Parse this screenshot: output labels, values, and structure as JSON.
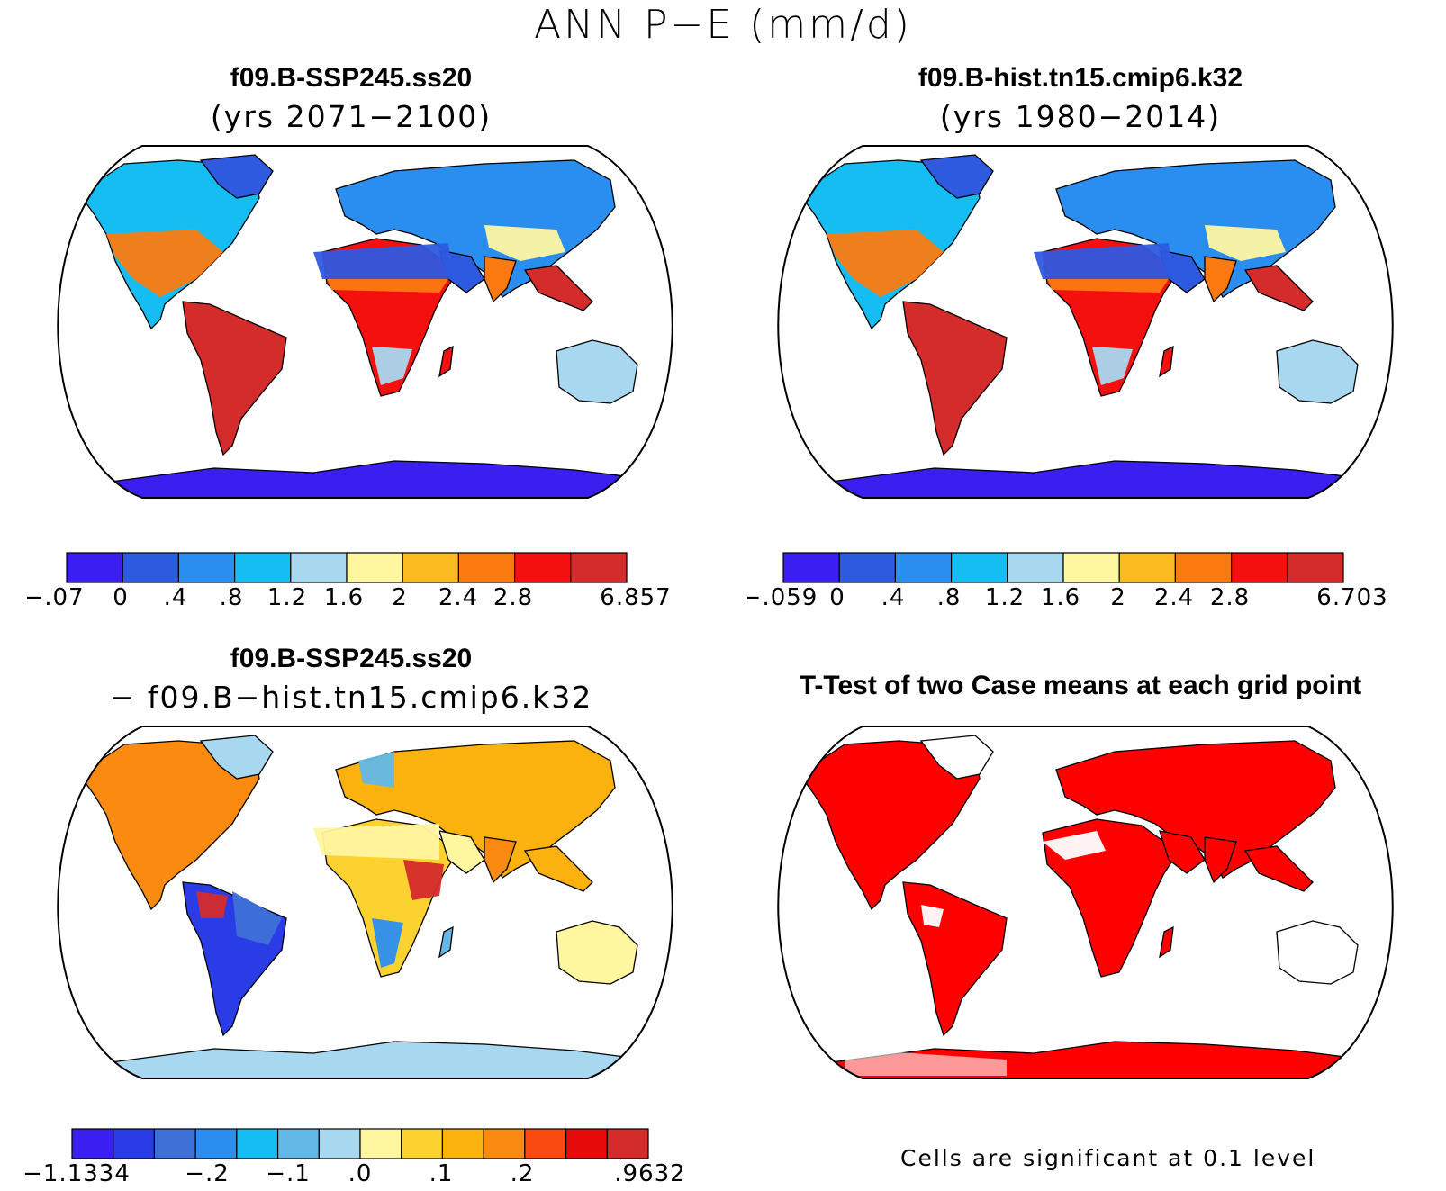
{
  "figure": {
    "title": "ANN P−E (mm/d)"
  },
  "panels": {
    "p1": {
      "title": "f09.B-SSP245.ss20",
      "subtitle": "(yrs 2071−2100)"
    },
    "p2": {
      "title": "f09.B-hist.tn15.cmip6.k32",
      "subtitle": "(yrs 1980−2014)"
    },
    "p3": {
      "title": "f09.B-SSP245.ss20",
      "subtitle": "− f09.B−hist.tn15.cmip6.k32"
    },
    "p4": {
      "title": "T-Test of two Case means at each grid point",
      "note": "Cells are significant at 0.1 level"
    }
  },
  "colorbars": {
    "cb1": {
      "labels": [
        "−.07",
        "0",
        ".4",
        ".8",
        "1.2",
        "1.6",
        "2",
        "2.4",
        "2.8",
        "6.857"
      ],
      "colors": [
        "#3b1ef0",
        "#2e5ae0",
        "#2a8ef0",
        "#16bdf2",
        "#a8d8f0",
        "#fff6a0",
        "#fbbb20",
        "#fb7a10",
        "#f51010",
        "#d42b2b"
      ]
    },
    "cb2": {
      "labels": [
        "−.059",
        "0",
        ".4",
        ".8",
        "1.2",
        "1.6",
        "2",
        "2.4",
        "2.8",
        "6.703"
      ],
      "colors": [
        "#3b1ef0",
        "#2e5ae0",
        "#2a8ef0",
        "#16bdf2",
        "#a8d8f0",
        "#fff6a0",
        "#fbbb20",
        "#fb7a10",
        "#f51010",
        "#d42b2b"
      ]
    },
    "cb3": {
      "labels": [
        "−1.1334",
        "−.2",
        "−.1",
        ".0",
        ".1",
        ".2",
        ".9632"
      ],
      "colors": [
        "#3b1ef0",
        "#2a3ce6",
        "#3e70d8",
        "#2a8ef0",
        "#16bdf2",
        "#62b9e8",
        "#a8d8f0",
        "#fff6a0",
        "#fbd230",
        "#fbb10e",
        "#fb8a10",
        "#fb4a10",
        "#e60a0a",
        "#d42b2b"
      ]
    }
  },
  "legend_colors": {
    "ocean": "#ffffff",
    "significant": "#ff0000",
    "coastline": "#000000"
  }
}
